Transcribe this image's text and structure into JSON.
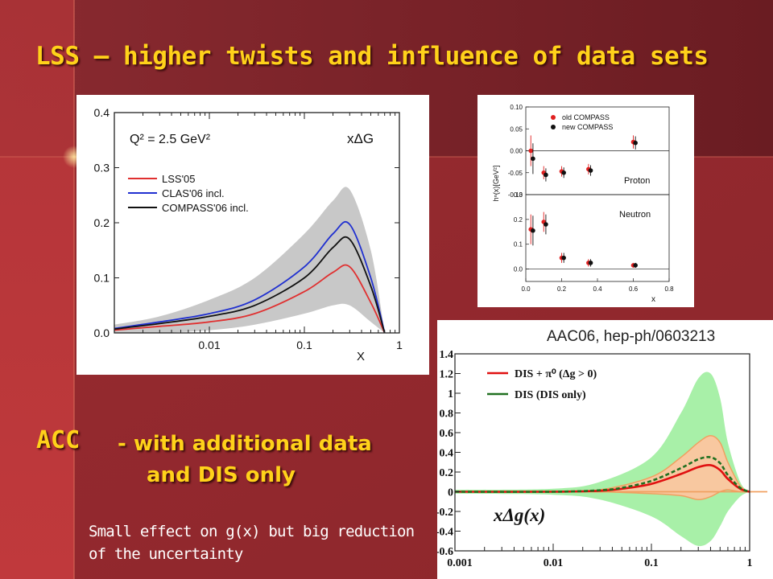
{
  "slide": {
    "title": "LSS – higher twists and influence of data sets",
    "acc_heading": "ACC",
    "acc_line1": "- with additional data",
    "acc_line2": "and DIS only",
    "note_line1": "Small effect on g(x) but big reduction",
    "note_line2": "of the uncertainty",
    "colors": {
      "background_dark": "#6e1c22",
      "background_red": "#b8363a",
      "title_yellow": "#ffd21a"
    }
  },
  "chart_data": [
    {
      "type": "line",
      "quantity": "xΔG",
      "annotation": "Q² = 2.5 GeV²",
      "xlabel": "X",
      "xscale": "log",
      "xlim": [
        0.001,
        1
      ],
      "ylim": [
        0,
        0.4
      ],
      "x_ticks": [
        "0.01",
        "0.1",
        "1"
      ],
      "y_ticks": [
        "0.0",
        "0.1",
        "0.2",
        "0.3",
        "0.4"
      ],
      "legend_position": "top-left",
      "x": [
        0.001,
        0.003,
        0.01,
        0.03,
        0.1,
        0.2,
        0.3,
        0.5,
        0.7
      ],
      "series": [
        {
          "name": "LSS'05",
          "color": "#e03030",
          "values": [
            0.005,
            0.012,
            0.02,
            0.035,
            0.075,
            0.11,
            0.12,
            0.055,
            0.0
          ]
        },
        {
          "name": "CLAS'06 incl.",
          "color": "#2030d0",
          "values": [
            0.008,
            0.02,
            0.035,
            0.06,
            0.12,
            0.18,
            0.197,
            0.1,
            0.0
          ]
        },
        {
          "name": "COMPASS'06 incl.",
          "color": "#111111",
          "values": [
            0.007,
            0.017,
            0.03,
            0.05,
            0.1,
            0.155,
            0.17,
            0.085,
            0.0
          ]
        }
      ],
      "band": {
        "label": "uncertainty",
        "x": [
          0.001,
          0.003,
          0.01,
          0.03,
          0.1,
          0.2,
          0.3,
          0.5,
          0.7
        ],
        "lower": [
          0.0,
          0.0,
          0.005,
          0.015,
          0.035,
          0.05,
          0.05,
          0.02,
          0.0
        ],
        "upper": [
          0.015,
          0.03,
          0.06,
          0.1,
          0.18,
          0.24,
          0.26,
          0.15,
          0.0
        ]
      }
    },
    {
      "type": "scatter",
      "ylabel": "hⁿ(x)[GeV²]",
      "xlabel": "x",
      "xlim": [
        0,
        0.8
      ],
      "panels": [
        {
          "name": "Proton",
          "ylim": [
            -0.1,
            0.1
          ],
          "y_ticks": [
            "-0.10",
            "-0.05",
            "0.00",
            "0.05",
            "0.10"
          ],
          "series": [
            {
              "name": "old COMPASS",
              "color": "#e02020",
              "x": [
                0.028,
                0.1,
                0.2,
                0.35,
                0.6
              ],
              "y": [
                0.0,
                -0.05,
                -0.047,
                -0.042,
                0.02
              ],
              "err": [
                0.035,
                0.015,
                0.012,
                0.012,
                0.015
              ]
            },
            {
              "name": "new COMPASS",
              "color": "#111111",
              "x": [
                0.04,
                0.112,
                0.212,
                0.362,
                0.612
              ],
              "y": [
                -0.018,
                -0.055,
                -0.05,
                -0.045,
                0.018
              ],
              "err": [
                0.035,
                0.015,
                0.012,
                0.012,
                0.015
              ]
            }
          ]
        },
        {
          "name": "Neutron",
          "ylim": [
            -0.05,
            0.3
          ],
          "y_ticks": [
            "0.0",
            "0.1",
            "0.2",
            "0.3"
          ],
          "series": [
            {
              "name": "old COMPASS",
              "color": "#e02020",
              "x": [
                0.028,
                0.1,
                0.2,
                0.35,
                0.6
              ],
              "y": [
                0.16,
                0.19,
                0.045,
                0.025,
                0.015
              ],
              "err": [
                0.06,
                0.04,
                0.02,
                0.015,
                0.01
              ]
            },
            {
              "name": "new COMPASS",
              "color": "#111111",
              "x": [
                0.04,
                0.112,
                0.212,
                0.362,
                0.612
              ],
              "y": [
                0.155,
                0.18,
                0.045,
                0.025,
                0.015
              ],
              "err": [
                0.06,
                0.04,
                0.02,
                0.015,
                0.01
              ]
            }
          ]
        }
      ],
      "x_ticks": [
        "0.0",
        "0.2",
        "0.4",
        "0.6",
        "0.8"
      ],
      "legend_position": "top-right"
    },
    {
      "type": "line",
      "title": "AAC06, hep-ph/0603213",
      "quantity": "xΔg(x)",
      "xscale": "log",
      "xlim": [
        0.001,
        1
      ],
      "ylim": [
        -0.6,
        1.4
      ],
      "x_ticks": [
        "0.001",
        "0.01",
        "0.1",
        "1"
      ],
      "y_ticks": [
        "1.4",
        "1.2",
        "1",
        "0.8",
        "0.6",
        "0.4",
        "0.2",
        "0",
        "-0.2",
        "-0.4",
        "-0.6"
      ],
      "legend_position": "top-left",
      "x": [
        0.001,
        0.01,
        0.03,
        0.05,
        0.1,
        0.2,
        0.3,
        0.4,
        0.5,
        0.6,
        0.8,
        1.0
      ],
      "series": [
        {
          "name": "DIS + π⁰ (Δg > 0)",
          "color": "#e01010",
          "values": [
            0,
            0,
            0.01,
            0.03,
            0.08,
            0.18,
            0.25,
            0.27,
            0.22,
            0.13,
            0.03,
            0
          ]
        },
        {
          "name": "DIS (DIS only)",
          "color": "#207020",
          "values": [
            0,
            0,
            0.015,
            0.04,
            0.11,
            0.24,
            0.33,
            0.35,
            0.29,
            0.17,
            0.04,
            0
          ]
        }
      ],
      "bands": [
        {
          "label": "DIS only uncertainty",
          "color": "#a8f0a8",
          "x": [
            0.001,
            0.01,
            0.03,
            0.1,
            0.2,
            0.3,
            0.4,
            0.5,
            0.6,
            0.8,
            1.0
          ],
          "lower": [
            -0.02,
            -0.03,
            -0.08,
            -0.25,
            -0.45,
            -0.55,
            -0.5,
            -0.35,
            -0.2,
            -0.05,
            0
          ],
          "upper": [
            0.02,
            0.03,
            0.1,
            0.35,
            0.8,
            1.15,
            1.2,
            0.95,
            0.5,
            0.1,
            0
          ]
        },
        {
          "label": "DIS + π⁰ uncertainty",
          "color": "#f8c8a0",
          "x": [
            0.001,
            0.01,
            0.03,
            0.1,
            0.2,
            0.3,
            0.4,
            0.5,
            0.6,
            0.8,
            1.0
          ],
          "lower": [
            0,
            0,
            0,
            -0.02,
            -0.04,
            -0.08,
            -0.05,
            0.0,
            0.02,
            0.0,
            0
          ],
          "upper": [
            0,
            0.005,
            0.02,
            0.15,
            0.35,
            0.5,
            0.57,
            0.5,
            0.3,
            0.06,
            0
          ]
        }
      ]
    }
  ]
}
